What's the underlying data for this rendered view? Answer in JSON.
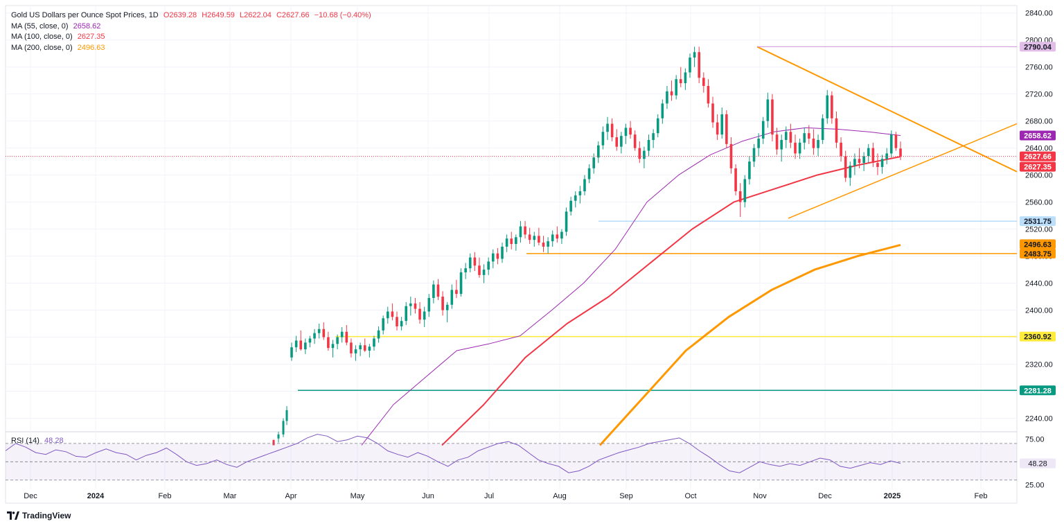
{
  "header": {
    "symbol": "Gold US Dollars per Ounce Spot Prices, 1D",
    "open": "O2639.28",
    "high": "H2649.59",
    "low": "L2622.04",
    "close": "C2627.66",
    "change": "−10.68 (−0.40%)"
  },
  "indicators": [
    {
      "label": "MA (55, close, 0)",
      "value": "2658.62",
      "color": "#9c27b0"
    },
    {
      "label": "MA (100, close, 0)",
      "value": "2627.35",
      "color": "#f23645"
    },
    {
      "label": "MA (200, close, 0)",
      "value": "2496.63",
      "color": "#ff9800"
    }
  ],
  "rsi": {
    "label": "RSI (14)",
    "value": "48.28",
    "color": "#7e57c2"
  },
  "footer": {
    "brand": "TradingView"
  },
  "chart_data": {
    "type": "candlestick",
    "price_axis": {
      "ylim": [
        2200,
        2850
      ],
      "ticks": [
        2240,
        2280,
        2320,
        2360,
        2400,
        2440,
        2480,
        2520,
        2560,
        2600,
        2640,
        2680,
        2720,
        2760,
        2800,
        2840
      ]
    },
    "time_axis": {
      "labels": [
        "Dec",
        "2024",
        "Feb",
        "Mar",
        "Apr",
        "May",
        "Jun",
        "Jul",
        "Aug",
        "Sep",
        "Oct",
        "Nov",
        "Dec",
        "2025",
        "Feb"
      ],
      "bold": [
        "2024",
        "2025"
      ]
    },
    "last_close": 2627.66,
    "candles_approx": [
      [
        2330,
        2352,
        2325,
        2345
      ],
      [
        2345,
        2362,
        2338,
        2355
      ],
      [
        2355,
        2370,
        2340,
        2342
      ],
      [
        2342,
        2358,
        2335,
        2352
      ],
      [
        2352,
        2362,
        2345,
        2358
      ],
      [
        2358,
        2372,
        2350,
        2366
      ],
      [
        2366,
        2380,
        2358,
        2372
      ],
      [
        2372,
        2382,
        2356,
        2360
      ],
      [
        2360,
        2368,
        2340,
        2344
      ],
      [
        2344,
        2356,
        2330,
        2350
      ],
      [
        2350,
        2364,
        2342,
        2360
      ],
      [
        2360,
        2375,
        2352,
        2368
      ],
      [
        2368,
        2378,
        2348,
        2352
      ],
      [
        2352,
        2358,
        2330,
        2336
      ],
      [
        2336,
        2348,
        2325,
        2342
      ],
      [
        2342,
        2352,
        2332,
        2348
      ],
      [
        2348,
        2358,
        2338,
        2340
      ],
      [
        2340,
        2350,
        2330,
        2346
      ],
      [
        2346,
        2362,
        2340,
        2358
      ],
      [
        2358,
        2376,
        2352,
        2370
      ],
      [
        2370,
        2392,
        2364,
        2388
      ],
      [
        2388,
        2405,
        2380,
        2398
      ],
      [
        2398,
        2410,
        2385,
        2390
      ],
      [
        2390,
        2398,
        2370,
        2376
      ],
      [
        2376,
        2390,
        2370,
        2384
      ],
      [
        2384,
        2412,
        2378,
        2406
      ],
      [
        2406,
        2420,
        2392,
        2410
      ],
      [
        2410,
        2418,
        2395,
        2402
      ],
      [
        2402,
        2412,
        2380,
        2386
      ],
      [
        2386,
        2405,
        2375,
        2398
      ],
      [
        2398,
        2424,
        2390,
        2418
      ],
      [
        2418,
        2444,
        2410,
        2438
      ],
      [
        2438,
        2446,
        2415,
        2420
      ],
      [
        2420,
        2428,
        2392,
        2400
      ],
      [
        2400,
        2412,
        2382,
        2408
      ],
      [
        2408,
        2438,
        2402,
        2430
      ],
      [
        2430,
        2445,
        2418,
        2424
      ],
      [
        2424,
        2462,
        2420,
        2456
      ],
      [
        2456,
        2470,
        2446,
        2462
      ],
      [
        2462,
        2484,
        2456,
        2478
      ],
      [
        2478,
        2486,
        2458,
        2466
      ],
      [
        2466,
        2478,
        2448,
        2452
      ],
      [
        2452,
        2468,
        2440,
        2460
      ],
      [
        2460,
        2478,
        2452,
        2472
      ],
      [
        2472,
        2490,
        2462,
        2484
      ],
      [
        2484,
        2492,
        2468,
        2476
      ],
      [
        2476,
        2500,
        2470,
        2494
      ],
      [
        2494,
        2512,
        2486,
        2506
      ],
      [
        2506,
        2516,
        2490,
        2498
      ],
      [
        2498,
        2512,
        2488,
        2508
      ],
      [
        2508,
        2532,
        2500,
        2524
      ],
      [
        2524,
        2532,
        2506,
        2512
      ],
      [
        2512,
        2522,
        2498,
        2504
      ],
      [
        2504,
        2516,
        2494,
        2510
      ],
      [
        2510,
        2522,
        2496,
        2500
      ],
      [
        2500,
        2510,
        2486,
        2494
      ],
      [
        2494,
        2508,
        2484,
        2502
      ],
      [
        2502,
        2518,
        2494,
        2512
      ],
      [
        2512,
        2524,
        2500,
        2506
      ],
      [
        2506,
        2520,
        2498,
        2516
      ],
      [
        2516,
        2552,
        2510,
        2546
      ],
      [
        2546,
        2568,
        2540,
        2562
      ],
      [
        2562,
        2576,
        2552,
        2570
      ],
      [
        2570,
        2584,
        2558,
        2576
      ],
      [
        2576,
        2600,
        2570,
        2594
      ],
      [
        2594,
        2616,
        2588,
        2610
      ],
      [
        2610,
        2632,
        2602,
        2626
      ],
      [
        2626,
        2650,
        2618,
        2644
      ],
      [
        2644,
        2672,
        2638,
        2664
      ],
      [
        2664,
        2686,
        2652,
        2676
      ],
      [
        2676,
        2684,
        2650,
        2656
      ],
      [
        2656,
        2668,
        2636,
        2642
      ],
      [
        2642,
        2664,
        2632,
        2658
      ],
      [
        2658,
        2676,
        2646,
        2670
      ],
      [
        2670,
        2680,
        2654,
        2660
      ],
      [
        2660,
        2666,
        2636,
        2640
      ],
      [
        2640,
        2650,
        2618,
        2624
      ],
      [
        2624,
        2642,
        2610,
        2636
      ],
      [
        2636,
        2660,
        2628,
        2652
      ],
      [
        2652,
        2668,
        2640,
        2662
      ],
      [
        2662,
        2690,
        2656,
        2684
      ],
      [
        2684,
        2712,
        2676,
        2706
      ],
      [
        2706,
        2732,
        2698,
        2724
      ],
      [
        2724,
        2740,
        2710,
        2718
      ],
      [
        2718,
        2748,
        2712,
        2742
      ],
      [
        2742,
        2760,
        2730,
        2736
      ],
      [
        2736,
        2758,
        2726,
        2752
      ],
      [
        2752,
        2780,
        2744,
        2774
      ],
      [
        2774,
        2790,
        2760,
        2782
      ],
      [
        2782,
        2790,
        2736,
        2744
      ],
      [
        2744,
        2752,
        2722,
        2732
      ],
      [
        2732,
        2742,
        2700,
        2706
      ],
      [
        2706,
        2716,
        2670,
        2678
      ],
      [
        2678,
        2690,
        2652,
        2660
      ],
      [
        2660,
        2700,
        2654,
        2690
      ],
      [
        2690,
        2696,
        2640,
        2646
      ],
      [
        2646,
        2656,
        2602,
        2610
      ],
      [
        2610,
        2616,
        2570,
        2576
      ],
      [
        2576,
        2588,
        2538,
        2560
      ],
      [
        2560,
        2600,
        2552,
        2594
      ],
      [
        2594,
        2628,
        2586,
        2620
      ],
      [
        2620,
        2646,
        2612,
        2640
      ],
      [
        2640,
        2662,
        2628,
        2654
      ],
      [
        2654,
        2686,
        2646,
        2680
      ],
      [
        2680,
        2722,
        2670,
        2712
      ],
      [
        2712,
        2720,
        2650,
        2660
      ],
      [
        2660,
        2670,
        2630,
        2638
      ],
      [
        2638,
        2660,
        2620,
        2652
      ],
      [
        2652,
        2672,
        2640,
        2664
      ],
      [
        2664,
        2676,
        2640,
        2648
      ],
      [
        2648,
        2660,
        2624,
        2632
      ],
      [
        2632,
        2654,
        2624,
        2648
      ],
      [
        2648,
        2670,
        2638,
        2662
      ],
      [
        2662,
        2674,
        2646,
        2654
      ],
      [
        2654,
        2668,
        2630,
        2640
      ],
      [
        2640,
        2660,
        2628,
        2652
      ],
      [
        2652,
        2690,
        2646,
        2684
      ],
      [
        2684,
        2726,
        2676,
        2718
      ],
      [
        2718,
        2724,
        2676,
        2684
      ],
      [
        2684,
        2694,
        2640,
        2648
      ],
      [
        2648,
        2656,
        2620,
        2628
      ],
      [
        2628,
        2636,
        2590,
        2596
      ],
      [
        2596,
        2620,
        2584,
        2614
      ],
      [
        2614,
        2632,
        2600,
        2624
      ],
      [
        2624,
        2640,
        2610,
        2618
      ],
      [
        2618,
        2634,
        2606,
        2628
      ],
      [
        2628,
        2646,
        2618,
        2640
      ],
      [
        2640,
        2648,
        2612,
        2618
      ],
      [
        2618,
        2632,
        2600,
        2612
      ],
      [
        2612,
        2630,
        2602,
        2624
      ],
      [
        2624,
        2640,
        2616,
        2632
      ],
      [
        2632,
        2666,
        2626,
        2660
      ],
      [
        2660,
        2664,
        2636,
        2640
      ],
      [
        2639.28,
        2649.59,
        2622.04,
        2627.66
      ]
    ],
    "levels": [
      {
        "price": 2790.04,
        "color": "#ce93d8",
        "label": "2790.04",
        "label_bg": "#e1bee7",
        "label_fg": "#131722"
      },
      {
        "price": 2531.75,
        "color": "#90caf9",
        "label": "2531.75",
        "label_bg": "#bbdefb",
        "label_fg": "#131722"
      },
      {
        "price": 2483.75,
        "color": "#ff9800",
        "label": "2483.75",
        "label_bg": "#ff9800",
        "label_fg": "#131722"
      },
      {
        "price": 2360.92,
        "color": "#ffeb3b",
        "label": "2360.92",
        "label_bg": "#ffeb3b",
        "label_fg": "#131722"
      },
      {
        "price": 2281.28,
        "color": "#089981",
        "label": "2281.28",
        "label_bg": "#089981",
        "label_fg": "#ffffff"
      }
    ],
    "price_tags": [
      {
        "price": 2658.62,
        "label": "2658.62",
        "bg": "#9c27b0",
        "fg": "#ffffff"
      },
      {
        "price": 2627.66,
        "label": "2627.66",
        "bg": "#f23645",
        "fg": "#ffffff"
      },
      {
        "price": 2627.35,
        "label": "2627.35",
        "bg": "#f23645",
        "fg": "#ffffff"
      },
      {
        "price": 2496.63,
        "label": "2496.63",
        "bg": "#ff9800",
        "fg": "#131722"
      }
    ],
    "ma55_approx": [
      2200,
      2260,
      2300,
      2340,
      2350,
      2362,
      2400,
      2440,
      2490,
      2560,
      2600,
      2630,
      2650,
      2664,
      2670,
      2668,
      2664,
      2658.62
    ],
    "ma100_approx": [
      2200,
      2260,
      2330,
      2380,
      2420,
      2470,
      2520,
      2560,
      2580,
      2600,
      2615,
      2627.35
    ],
    "ma200_approx": [
      2200,
      2270,
      2340,
      2390,
      2430,
      2460,
      2480,
      2496.63
    ],
    "rsi_axis": {
      "ylim": [
        20,
        80
      ],
      "ticks": [
        25,
        50,
        75
      ],
      "overbought": 70,
      "midline": 50,
      "oversold": 30
    },
    "rsi_approx": [
      62,
      70,
      66,
      60,
      58,
      63,
      61,
      56,
      55,
      60,
      64,
      60,
      58,
      52,
      57,
      60,
      65,
      58,
      50,
      46,
      48,
      52,
      47,
      44,
      50,
      54,
      58,
      62,
      66,
      70,
      76,
      80,
      78,
      72,
      74,
      78,
      76,
      70,
      62,
      58,
      55,
      60,
      56,
      50,
      45,
      52,
      55,
      62,
      66,
      70,
      72,
      68,
      60,
      52,
      48,
      45,
      38,
      40,
      45,
      52,
      56,
      60,
      63,
      66,
      70,
      72,
      74,
      76,
      70,
      62,
      55,
      47,
      40,
      38,
      44,
      50,
      47,
      45,
      48,
      46,
      50,
      54,
      52,
      45,
      43,
      46,
      49,
      47,
      51,
      48.28
    ]
  }
}
